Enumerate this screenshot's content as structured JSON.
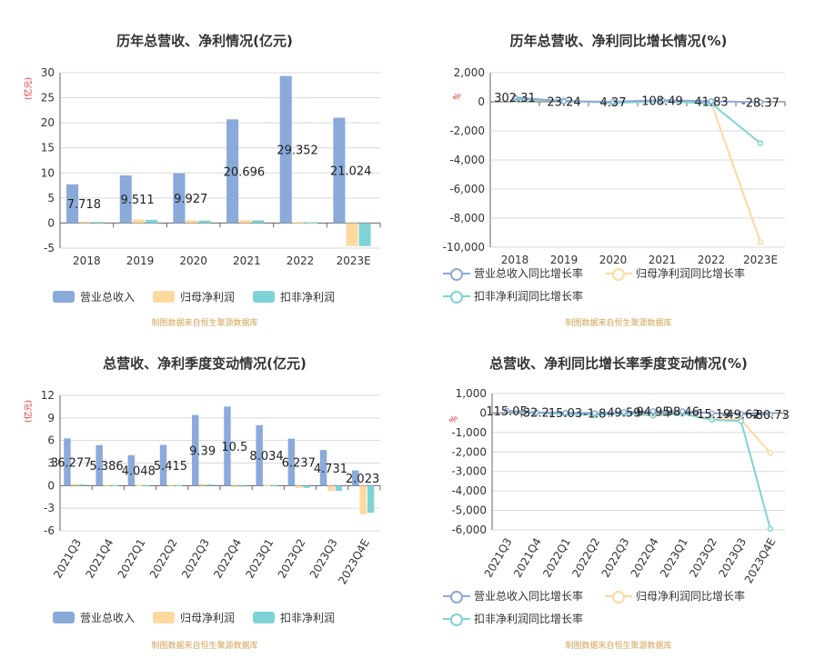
{
  "colors": {
    "revenue": "#8aaad9",
    "netprofit": "#fdd9a0",
    "nonrecurring": "#7fd3d6",
    "grid": "#d9d9d9",
    "axis": "#666666",
    "text": "#333333"
  },
  "source_text": "制图数据来自恒生聚源数据库",
  "unit_label": "(亿元)",
  "pct_label": "%",
  "legend_bar": [
    "营业总收入",
    "归母净利润",
    "扣非净利润"
  ],
  "legend_line": [
    "营业总收入同比增长率",
    "归母净利润同比增长率",
    "扣非净利润同比增长率"
  ],
  "chart_data": [
    {
      "type": "bar",
      "title": "历年总营收、净利情况(亿元)",
      "categories": [
        "2018",
        "2019",
        "2020",
        "2021",
        "2022",
        "2023E"
      ],
      "ylim": [
        -5,
        30
      ],
      "yticks": [
        -5,
        0,
        5,
        10,
        15,
        20,
        25,
        30
      ],
      "series": [
        {
          "name": "营业总收入",
          "values": [
            7.718,
            9.511,
            9.927,
            20.696,
            29.352,
            21.024
          ]
        },
        {
          "name": "归母净利润",
          "values": [
            0.3,
            0.7,
            0.55,
            0.6,
            0.15,
            -4.6
          ]
        },
        {
          "name": "扣非净利润",
          "values": [
            0.2,
            0.65,
            0.5,
            0.55,
            0.1,
            -4.6
          ]
        }
      ],
      "data_labels": [
        "7.718",
        "9.511",
        "9.927",
        "20.696",
        "29.352",
        "21.024"
      ]
    },
    {
      "type": "line",
      "title": "历年总营收、净利同比增长情况(%)",
      "categories": [
        "2018",
        "2019",
        "2020",
        "2021",
        "2022",
        "2023E"
      ],
      "ylim": [
        -10000,
        2000
      ],
      "yticks": [
        -10000,
        -8000,
        -6000,
        -4000,
        -2000,
        0,
        2000
      ],
      "ytick_labels": [
        "-10,000",
        "-8,000",
        "-6,000",
        "-4,000",
        "-2,000",
        "0",
        "2,000"
      ],
      "series": [
        {
          "name": "营业总收入同比增长率",
          "values": [
            302.31,
            23.24,
            4.37,
            108.49,
            41.83,
            -28.37
          ]
        },
        {
          "name": "归母净利润同比增长率",
          "values": [
            150,
            100,
            -50,
            50,
            -100,
            -9650
          ]
        },
        {
          "name": "扣非净利润同比增长率",
          "values": [
            180,
            90,
            -80,
            40,
            -120,
            -2850
          ]
        }
      ],
      "data_labels": [
        "302.31",
        "23.24",
        "4.37",
        "108.49",
        "41.83",
        "-28.37"
      ]
    },
    {
      "type": "bar",
      "title": "总营收、净利季度变动情况(亿元)",
      "categories": [
        "2021Q3",
        "2021Q4",
        "2022Q1",
        "2022Q2",
        "2022Q3",
        "2022Q4",
        "2023Q1",
        "2023Q2",
        "2023Q3",
        "2023Q4E"
      ],
      "ylim": [
        -6,
        12
      ],
      "yticks": [
        -6,
        -3,
        0,
        3,
        6,
        9,
        12
      ],
      "series": [
        {
          "name": "营业总收入",
          "values": [
            6.277,
            5.386,
            4.048,
            5.415,
            9.39,
            10.5,
            8.034,
            6.237,
            4.731,
            2.023
          ]
        },
        {
          "name": "归母净利润",
          "values": [
            0.2,
            0.1,
            0.05,
            0.1,
            0.2,
            -0.2,
            0.05,
            -0.3,
            -0.7,
            -3.8
          ]
        },
        {
          "name": "扣非净利润",
          "values": [
            0.15,
            0.05,
            0.02,
            0.05,
            0.15,
            -0.1,
            0.02,
            -0.3,
            -0.7,
            -3.6
          ]
        }
      ],
      "data_labels": [
        "6.277",
        "5.386",
        "4.048",
        "5.415",
        "9.39",
        "10.5",
        "8.034",
        "6.237",
        "4.731",
        "2.023"
      ],
      "extra_labels": [
        "3"
      ]
    },
    {
      "type": "line",
      "title": "总营收、净利同比增长率季度变动情况(%)",
      "categories": [
        "2021Q3",
        "2021Q4",
        "2022Q1",
        "2022Q2",
        "2022Q3",
        "2022Q4",
        "2023Q1",
        "2023Q2",
        "2023Q3",
        "2023Q4E"
      ],
      "ylim": [
        -6000,
        1000
      ],
      "yticks": [
        -6000,
        -5000,
        -4000,
        -3000,
        -2000,
        -1000,
        0,
        1000
      ],
      "ytick_labels": [
        "-6,000",
        "-5,000",
        "-4,000",
        "-3,000",
        "-2,000",
        "-1,000",
        "0",
        "1,000"
      ],
      "series": [
        {
          "name": "营业总收入同比增长率",
          "values": [
            115.05,
            32.2,
            15.03,
            -1.8,
            49.59,
            94.95,
            98.46,
            -15.19,
            -49.62,
            -80.73
          ]
        },
        {
          "name": "归母净利润同比增长率",
          "values": [
            60,
            20,
            -50,
            -80,
            -20,
            -150,
            -30,
            -300,
            -350,
            -2050
          ]
        },
        {
          "name": "扣非净利润同比增长率",
          "values": [
            80,
            10,
            -60,
            -90,
            -30,
            -120,
            -40,
            -350,
            -420,
            -5950
          ]
        }
      ],
      "data_labels": [
        "115.05",
        "32.2",
        "15.03",
        "-1.8",
        "49.59",
        "94.95",
        "98.46",
        "-15.19",
        "-49.62",
        "-80.73"
      ]
    }
  ]
}
